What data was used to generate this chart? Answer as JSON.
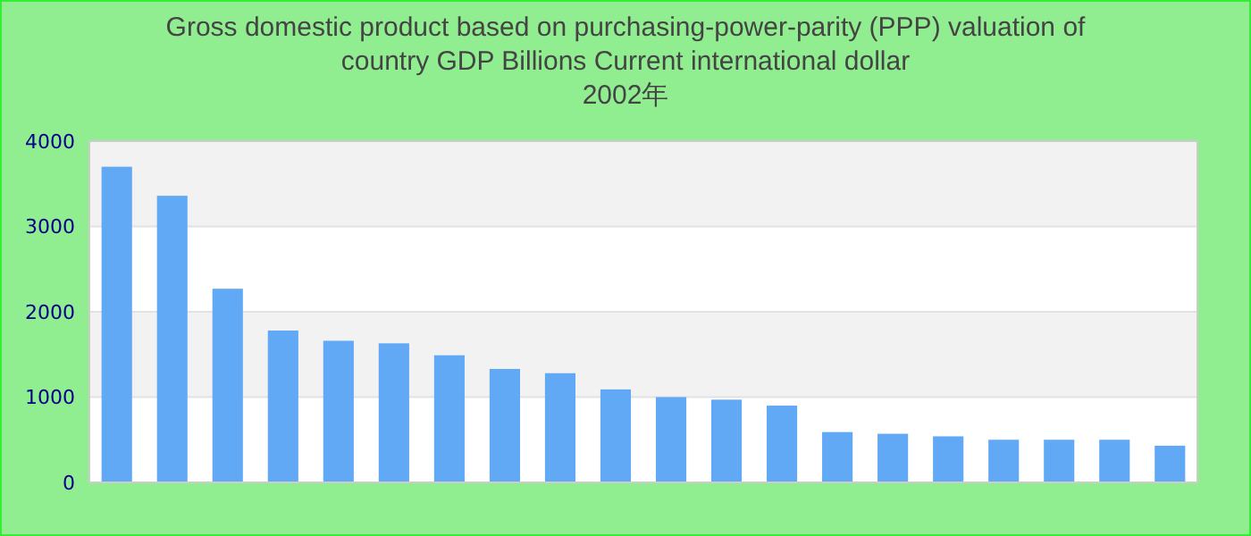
{
  "chart_data": {
    "type": "bar",
    "title": "Gross domestic product based on purchasing-power-parity (PPP) valuation of country GDP Billions Current international dollar",
    "subtitle": "2002年",
    "categories": [
      null,
      null,
      null,
      null,
      null,
      null,
      null,
      null,
      null,
      null,
      null,
      null,
      null,
      null,
      null,
      null,
      null,
      null,
      null,
      null
    ],
    "values": [
      3700,
      3360,
      2270,
      1780,
      1660,
      1630,
      1490,
      1330,
      1280,
      1090,
      1000,
      970,
      900,
      590,
      570,
      540,
      500,
      500,
      500,
      430
    ],
    "color": "#61a8f5",
    "ylim": [
      0,
      4000
    ],
    "yticks": [
      0,
      1000,
      2000,
      3000,
      4000
    ],
    "grid": "y"
  }
}
